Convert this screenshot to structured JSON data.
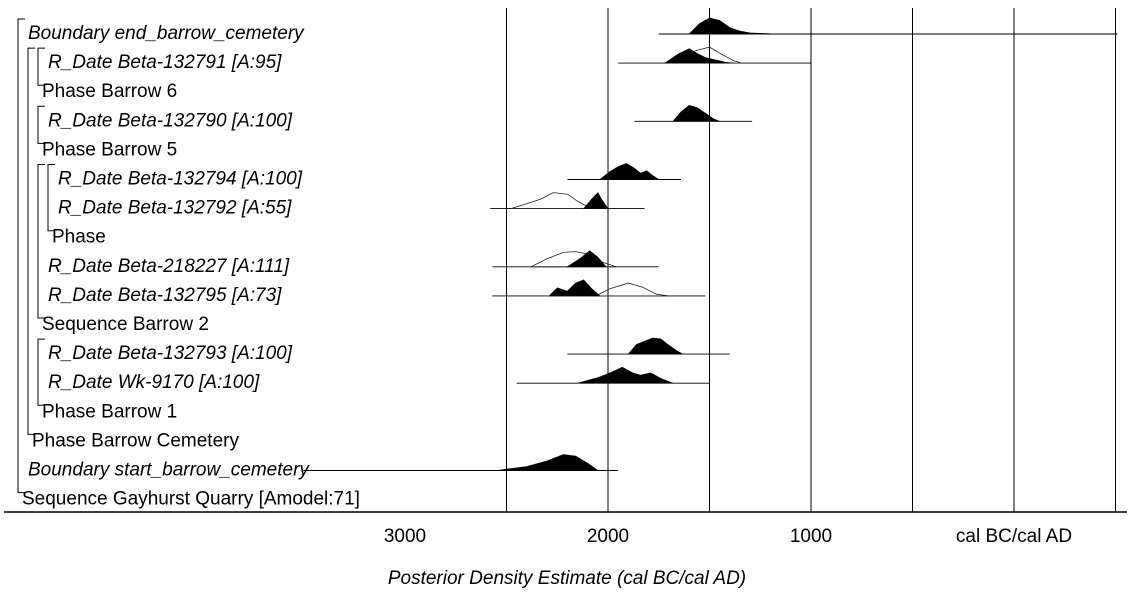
{
  "chart_data": {
    "type": "multiple-plot",
    "xlabel": "Posterior Density Estimate (cal BC/cal AD)",
    "x_ticks": [
      {
        "label": "3000",
        "value": 3000
      },
      {
        "label": "2000",
        "value": 2000
      },
      {
        "label": "1000",
        "value": 1000
      },
      {
        "label": "cal BC/cal AD",
        "value": 0
      }
    ],
    "xlim": [
      3500,
      -500
    ],
    "rows": [
      {
        "label": "Boundary end_barrow_cemetery",
        "italic": true,
        "range": [
          1750,
          -510
        ],
        "posterior": [
          [
            1600,
            0
          ],
          [
            1550,
            0.65
          ],
          [
            1500,
            1
          ],
          [
            1450,
            0.85
          ],
          [
            1400,
            0.4
          ],
          [
            1350,
            0.18
          ],
          [
            1300,
            0.07
          ],
          [
            1200,
            0.02
          ],
          [
            1000,
            0.005
          ],
          [
            1100,
            0
          ]
        ]
      },
      {
        "label": "R_Date Beta-132791 [A:95]",
        "italic": true,
        "range": [
          1950,
          1000
        ],
        "prior": [
          [
            1700,
            0
          ],
          [
            1620,
            0.5
          ],
          [
            1560,
            0.8
          ],
          [
            1500,
            1
          ],
          [
            1440,
            0.55
          ],
          [
            1380,
            0.15
          ],
          [
            1340,
            0
          ]
        ],
        "posterior": [
          [
            1720,
            0
          ],
          [
            1650,
            0.6
          ],
          [
            1600,
            0.9
          ],
          [
            1560,
            0.6
          ],
          [
            1520,
            0.35
          ],
          [
            1470,
            0.2
          ],
          [
            1420,
            0.05
          ],
          [
            1380,
            0
          ]
        ]
      },
      {
        "label": "Phase Barrow 6",
        "italic": false
      },
      {
        "label": "R_Date Beta-132790 [A:100]",
        "italic": true,
        "range": [
          1870,
          1290
        ],
        "posterior": [
          [
            1680,
            0
          ],
          [
            1640,
            0.6
          ],
          [
            1600,
            1
          ],
          [
            1560,
            0.85
          ],
          [
            1520,
            0.5
          ],
          [
            1480,
            0.15
          ],
          [
            1450,
            0
          ]
        ]
      },
      {
        "label": "Phase Barrow 5",
        "italic": false
      },
      {
        "label": "R_Date Beta-132794 [A:100]",
        "italic": true,
        "range": [
          2200,
          1640
        ],
        "posterior": [
          [
            2040,
            0
          ],
          [
            1990,
            0.5
          ],
          [
            1950,
            0.8
          ],
          [
            1910,
            1
          ],
          [
            1870,
            0.7
          ],
          [
            1840,
            0.4
          ],
          [
            1810,
            0.55
          ],
          [
            1780,
            0.25
          ],
          [
            1750,
            0
          ]
        ]
      },
      {
        "label": "R_Date Beta-132792 [A:55]",
        "italic": true,
        "range": [
          2580,
          1820
        ],
        "prior": [
          [
            2480,
            0
          ],
          [
            2400,
            0.3
          ],
          [
            2330,
            0.6
          ],
          [
            2270,
            1
          ],
          [
            2200,
            0.9
          ],
          [
            2160,
            0.55
          ],
          [
            2120,
            0.25
          ],
          [
            2060,
            0
          ]
        ],
        "posterior": [
          [
            2120,
            0
          ],
          [
            2080,
            0.6
          ],
          [
            2050,
            1
          ],
          [
            2030,
            0.55
          ],
          [
            2000,
            0
          ]
        ]
      },
      {
        "label": "Phase",
        "italic": false
      },
      {
        "label": "R_Date Beta-218227 [A:111]",
        "italic": true,
        "range": [
          2570,
          1750
        ],
        "prior": [
          [
            2380,
            0
          ],
          [
            2300,
            0.5
          ],
          [
            2220,
            0.9
          ],
          [
            2160,
            0.95
          ],
          [
            2100,
            0.8
          ],
          [
            2030,
            0.3
          ],
          [
            1960,
            0
          ]
        ],
        "posterior": [
          [
            2200,
            0
          ],
          [
            2140,
            0.5
          ],
          [
            2090,
            1
          ],
          [
            2050,
            0.6
          ],
          [
            2010,
            0
          ]
        ]
      },
      {
        "label": "R_Date Beta-132795 [A:73]",
        "italic": true,
        "range": [
          2570,
          1520
        ],
        "prior": [
          [
            2060,
            0
          ],
          [
            1990,
            0.45
          ],
          [
            1900,
            0.8
          ],
          [
            1830,
            0.55
          ],
          [
            1760,
            0.1
          ],
          [
            1700,
            0
          ]
        ],
        "posterior": [
          [
            2290,
            0
          ],
          [
            2250,
            0.5
          ],
          [
            2200,
            0.3
          ],
          [
            2160,
            0.8
          ],
          [
            2120,
            1
          ],
          [
            2080,
            0.45
          ],
          [
            2040,
            0
          ]
        ]
      },
      {
        "label": "Sequence Barrow 2",
        "italic": false
      },
      {
        "label": "R_Date Beta-132793 [A:100]",
        "italic": true,
        "range": [
          2200,
          1400
        ],
        "posterior": [
          [
            1900,
            0
          ],
          [
            1860,
            0.6
          ],
          [
            1820,
            0.8
          ],
          [
            1780,
            1
          ],
          [
            1740,
            0.95
          ],
          [
            1700,
            0.55
          ],
          [
            1660,
            0.2
          ],
          [
            1630,
            0
          ]
        ]
      },
      {
        "label": "R_Date Wk-9170 [A:100]",
        "italic": true,
        "range": [
          2450,
          1500
        ],
        "posterior": [
          [
            2150,
            0
          ],
          [
            2050,
            0.35
          ],
          [
            1980,
            0.7
          ],
          [
            1930,
            1
          ],
          [
            1880,
            0.65
          ],
          [
            1840,
            0.5
          ],
          [
            1790,
            0.65
          ],
          [
            1740,
            0.3
          ],
          [
            1680,
            0
          ]
        ]
      },
      {
        "label": "Phase Barrow 1",
        "italic": false
      },
      {
        "label": "Phase Barrow Cemetery",
        "italic": false
      },
      {
        "label": "Boundary start_barrow_cemetery",
        "italic": true,
        "range": [
          3500,
          1950
        ],
        "posterior": [
          [
            2550,
            0
          ],
          [
            2400,
            0.25
          ],
          [
            2300,
            0.6
          ],
          [
            2220,
            1
          ],
          [
            2160,
            0.9
          ],
          [
            2100,
            0.45
          ],
          [
            2050,
            0
          ]
        ]
      },
      {
        "label": "Sequence Gayhurst Quarry [Amodel:71]",
        "italic": false
      }
    ],
    "brackets": [
      {
        "from": 0,
        "to": 16,
        "level": 0
      },
      {
        "from": 1,
        "to": 14,
        "level": 1
      },
      {
        "from": 1,
        "to": 2,
        "level": 2
      },
      {
        "from": 3,
        "to": 4,
        "level": 2
      },
      {
        "from": 5,
        "to": 10,
        "level": 2
      },
      {
        "from": 5,
        "to": 7,
        "level": 3
      },
      {
        "from": 11,
        "to": 13,
        "level": 2
      }
    ]
  }
}
